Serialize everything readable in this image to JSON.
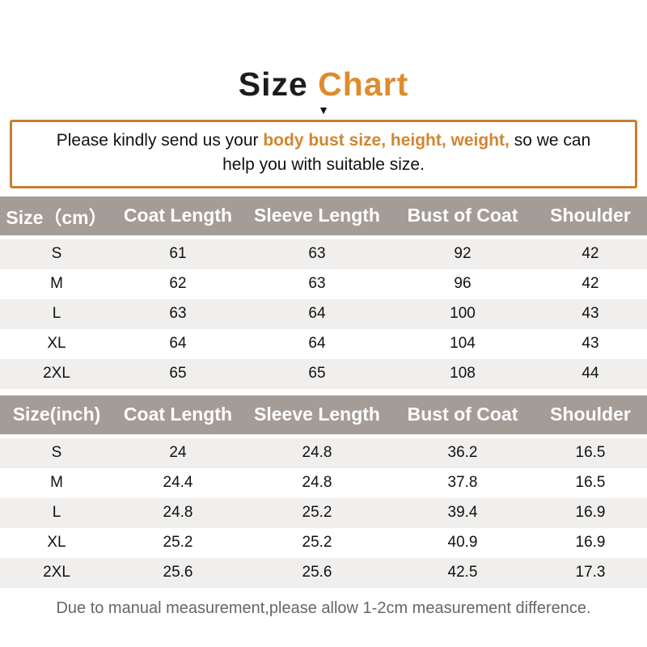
{
  "title": {
    "black_part": "Size ",
    "orange_part": "Chart"
  },
  "arrow_icon": "▼",
  "notice": {
    "before": "Please kindly send us your ",
    "highlight": "body bust size, height, weight,",
    "after": " so we can help you with suitable size."
  },
  "chart_data": [
    {
      "type": "table",
      "unit": "cm",
      "columns": [
        "Size（cm）",
        "Coat Length",
        "Sleeve Length",
        "Bust of Coat",
        "Shoulder"
      ],
      "rows": [
        [
          "S",
          "61",
          "63",
          "92",
          "42"
        ],
        [
          "M",
          "62",
          "63",
          "96",
          "42"
        ],
        [
          "L",
          "63",
          "64",
          "100",
          "43"
        ],
        [
          "XL",
          "64",
          "64",
          "104",
          "43"
        ],
        [
          "2XL",
          "65",
          "65",
          "108",
          "44"
        ]
      ]
    },
    {
      "type": "table",
      "unit": "inch",
      "columns": [
        "Size(inch)",
        "Coat Length",
        "Sleeve Length",
        "Bust of Coat",
        "Shoulder"
      ],
      "rows": [
        [
          "S",
          "24",
          "24.8",
          "36.2",
          "16.5"
        ],
        [
          "M",
          "24.4",
          "24.8",
          "37.8",
          "16.5"
        ],
        [
          "L",
          "24.8",
          "25.2",
          "39.4",
          "16.9"
        ],
        [
          "XL",
          "25.2",
          "25.2",
          "40.9",
          "16.9"
        ],
        [
          "2XL",
          "25.6",
          "25.6",
          "42.5",
          "17.3"
        ]
      ]
    }
  ],
  "footer_note": "Due to manual measurement,please allow 1-2cm measurement difference.",
  "colors": {
    "title_orange": "#DD8C2F",
    "notice_border_orange": "#C87E30",
    "notice_highlight_orange": "#D28530",
    "table_header_bg": "#A39C97",
    "table_row_alt_bg": "#F0EFEE"
  }
}
